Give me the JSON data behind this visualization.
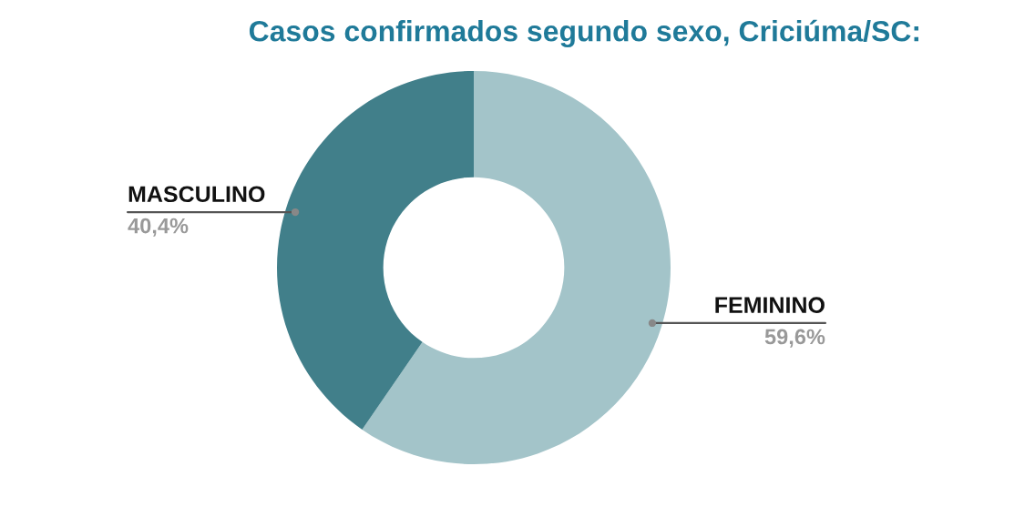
{
  "chart_data": {
    "type": "donut",
    "title": "Casos confirmados segundo sexo, Criciúma/SC:",
    "categories": [
      "FEMININO",
      "MASCULINO"
    ],
    "values": [
      59.6,
      40.4
    ],
    "value_labels": [
      "59,6%",
      "40,4%"
    ],
    "colors": [
      "#a3c4c9",
      "#417f8a"
    ],
    "legend": false
  }
}
